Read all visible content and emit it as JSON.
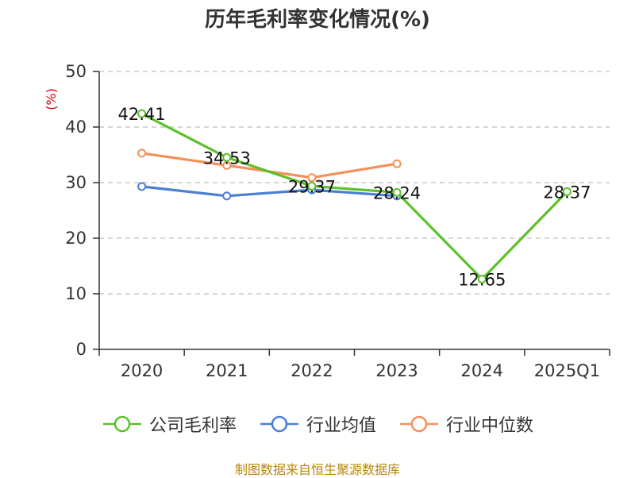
{
  "chart_data": {
    "type": "line",
    "title": "历年毛利率变化情况(%)",
    "unit_label": "(%)",
    "categories": [
      "2020",
      "2021",
      "2022",
      "2023",
      "2024",
      "2025Q1"
    ],
    "ylim": [
      0,
      50
    ],
    "yticks": [
      0,
      10,
      20,
      30,
      40,
      50
    ],
    "grid": true,
    "legend_position": "bottom",
    "series": [
      {
        "name": "公司毛利率",
        "color": "#5cc12a",
        "values": [
          42.41,
          34.53,
          29.37,
          28.24,
          12.65,
          28.37
        ],
        "labels": [
          "42.41",
          "34.53",
          "29.37",
          "28.24",
          "12.65",
          "28.37"
        ]
      },
      {
        "name": "行业均值",
        "color": "#4a7fd6",
        "values": [
          29.3,
          27.6,
          28.7,
          27.6,
          null,
          null
        ]
      },
      {
        "name": "行业中位数",
        "color": "#f5905a",
        "values": [
          35.3,
          33.1,
          30.9,
          33.4,
          null,
          null
        ]
      }
    ]
  },
  "footer": {
    "source": "制图数据来自恒生聚源数据库"
  }
}
